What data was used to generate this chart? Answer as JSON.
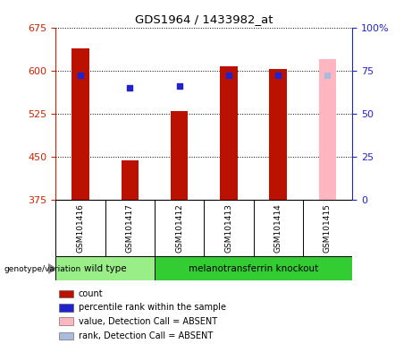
{
  "title": "GDS1964 / 1433982_at",
  "samples": [
    "GSM101416",
    "GSM101417",
    "GSM101412",
    "GSM101413",
    "GSM101414",
    "GSM101415"
  ],
  "count_values": [
    638,
    443,
    530,
    607,
    603,
    null
  ],
  "rank_values": [
    72,
    65,
    66,
    72,
    72,
    null
  ],
  "absent_value": 620,
  "absent_rank": 72,
  "ylim_left": [
    375,
    675
  ],
  "ylim_right": [
    0,
    100
  ],
  "yticks_left": [
    375,
    450,
    525,
    600,
    675
  ],
  "yticks_right": [
    0,
    25,
    50,
    75,
    100
  ],
  "bar_color": "#BB1100",
  "rank_color": "#2222CC",
  "absent_bar_color": "#FFB6C1",
  "absent_rank_color": "#AABBDD",
  "bg_color": "#FFFFFF",
  "left_axis_color": "#CC2200",
  "right_axis_color": "#2222CC",
  "bar_width": 0.35,
  "wild_type_color": "#99EE88",
  "knockout_color": "#33CC33",
  "label_bg_color": "#CCCCCC",
  "legend_items": [
    {
      "color": "#BB1100",
      "label": "count"
    },
    {
      "color": "#2222CC",
      "label": "percentile rank within the sample"
    },
    {
      "color": "#FFB6C1",
      "label": "value, Detection Call = ABSENT"
    },
    {
      "color": "#AABBDD",
      "label": "rank, Detection Call = ABSENT"
    }
  ]
}
